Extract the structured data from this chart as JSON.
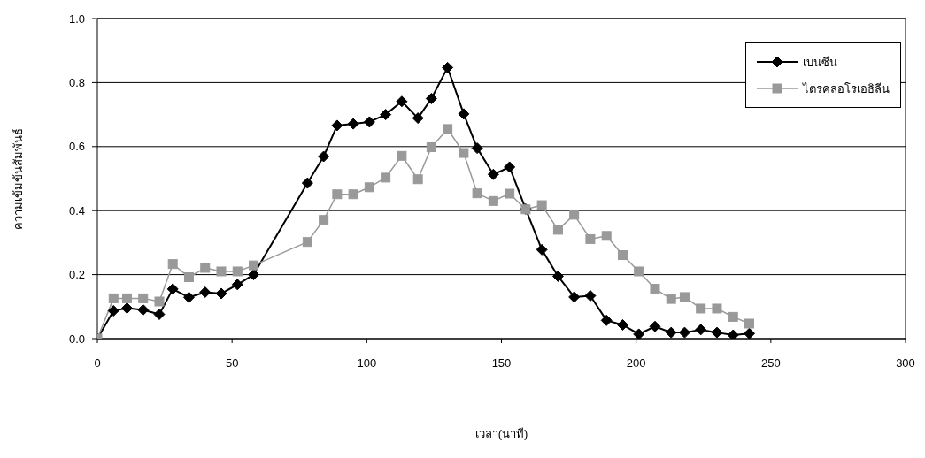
{
  "chart_data": {
    "type": "line",
    "xlabel": "เวลา(นาที)",
    "ylabel": "ความเข้มข้นสัมพันธ์",
    "x": [
      0,
      6,
      11,
      17,
      23,
      28,
      34,
      40,
      46,
      52,
      58,
      78,
      84,
      89,
      95,
      101,
      107,
      113,
      119,
      124,
      130,
      136,
      141,
      147,
      153,
      159,
      165,
      171,
      177,
      183,
      189,
      195,
      201,
      207,
      213,
      218,
      224,
      230,
      236,
      242
    ],
    "series": [
      {
        "name": "เบนซีน",
        "color": "#000000",
        "marker": "diamond",
        "values": [
          0,
          0.087,
          0.095,
          0.09,
          0.076,
          0.155,
          0.129,
          0.145,
          0.141,
          0.169,
          0.2,
          0.486,
          0.569,
          0.666,
          0.671,
          0.677,
          0.7,
          0.741,
          0.689,
          0.75,
          0.847,
          0.702,
          0.595,
          0.513,
          0.536,
          0.405,
          0.278,
          0.195,
          0.13,
          0.134,
          0.057,
          0.043,
          0.014,
          0.038,
          0.019,
          0.019,
          0.028,
          0.019,
          0.011,
          0.016
        ]
      },
      {
        "name": "ไตรคลอโรเอธิลีน",
        "color": "#999999",
        "marker": "square",
        "values": [
          0,
          0.126,
          0.126,
          0.126,
          0.116,
          0.233,
          0.192,
          0.221,
          0.21,
          0.21,
          0.229,
          0.302,
          0.371,
          0.451,
          0.451,
          0.473,
          0.503,
          0.571,
          0.498,
          0.598,
          0.655,
          0.58,
          0.454,
          0.43,
          0.453,
          0.404,
          0.417,
          0.34,
          0.387,
          0.311,
          0.321,
          0.261,
          0.21,
          0.156,
          0.124,
          0.13,
          0.094,
          0.094,
          0.068,
          0.047
        ]
      }
    ],
    "xlim": [
      0,
      300
    ],
    "xticks": [
      0,
      50,
      100,
      150,
      200,
      250,
      300
    ],
    "ylim": [
      0,
      1
    ],
    "yticks": [
      {
        "value": 0,
        "label": "0.0"
      },
      {
        "value": 0.2,
        "label": "0.2"
      },
      {
        "value": 0.4,
        "label": "0.4"
      },
      {
        "value": 0.6,
        "label": "0.6"
      },
      {
        "value": 0.8,
        "label": "0.8"
      },
      {
        "value": 1,
        "label": "1.0"
      }
    ],
    "grid": "y",
    "legend": "top right",
    "line_style": "solid"
  }
}
